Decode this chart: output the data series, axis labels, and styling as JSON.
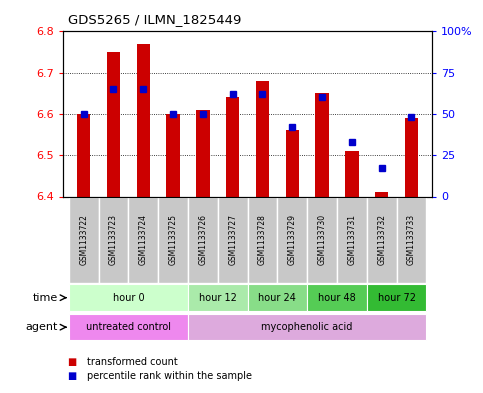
{
  "title": "GDS5265 / ILMN_1825449",
  "samples": [
    "GSM1133722",
    "GSM1133723",
    "GSM1133724",
    "GSM1133725",
    "GSM1133726",
    "GSM1133727",
    "GSM1133728",
    "GSM1133729",
    "GSM1133730",
    "GSM1133731",
    "GSM1133732",
    "GSM1133733"
  ],
  "bar_tops": [
    6.6,
    6.75,
    6.77,
    6.6,
    6.61,
    6.64,
    6.68,
    6.56,
    6.65,
    6.51,
    6.41,
    6.59
  ],
  "bar_base": 6.4,
  "percentile_values": [
    50,
    65,
    65,
    50,
    50,
    62,
    62,
    42,
    60,
    33,
    17,
    48
  ],
  "ylim_left": [
    6.4,
    6.8
  ],
  "ylim_right": [
    0,
    100
  ],
  "yticks_left": [
    6.4,
    6.5,
    6.6,
    6.7,
    6.8
  ],
  "yticks_right": [
    0,
    25,
    50,
    75,
    100
  ],
  "ytick_labels_right": [
    "0",
    "25",
    "50",
    "75",
    "100%"
  ],
  "bar_color": "#cc0000",
  "dot_color": "#0000cc",
  "time_groups": [
    {
      "label": "hour 0",
      "start": 0,
      "end": 4,
      "color": "#ccffcc"
    },
    {
      "label": "hour 12",
      "start": 4,
      "end": 6,
      "color": "#aaeaaa"
    },
    {
      "label": "hour 24",
      "start": 6,
      "end": 8,
      "color": "#88dd88"
    },
    {
      "label": "hour 48",
      "start": 8,
      "end": 10,
      "color": "#55cc55"
    },
    {
      "label": "hour 72",
      "start": 10,
      "end": 12,
      "color": "#33bb33"
    }
  ],
  "agent_groups": [
    {
      "label": "untreated control",
      "start": 0,
      "end": 4,
      "color": "#ee88ee"
    },
    {
      "label": "mycophenolic acid",
      "start": 4,
      "end": 12,
      "color": "#ddaadd"
    }
  ],
  "legend_bar_label": "transformed count",
  "legend_dot_label": "percentile rank within the sample",
  "xlabel_time": "time",
  "xlabel_agent": "agent",
  "sample_bg_color": "#c8c8c8",
  "spine_color": "#000000"
}
